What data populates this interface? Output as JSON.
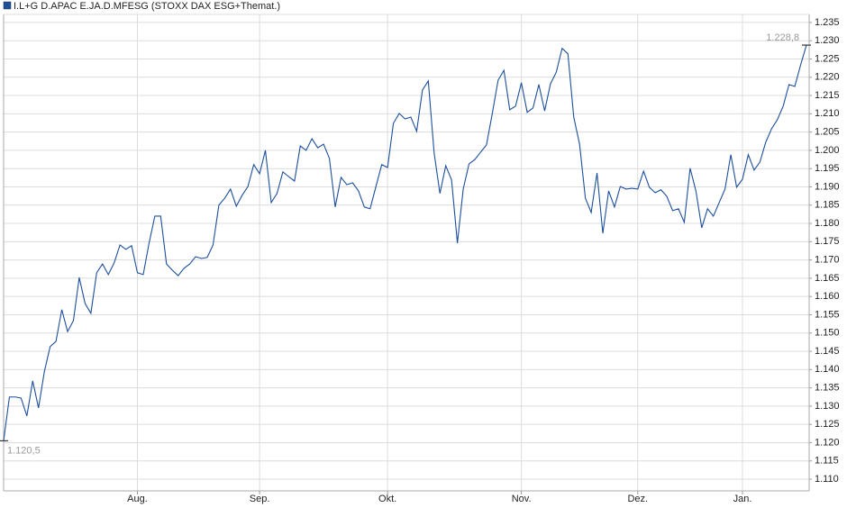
{
  "chart_data": {
    "type": "line",
    "categories": [
      null,
      null,
      null,
      null,
      null,
      null,
      null,
      null,
      null,
      null,
      null,
      null,
      null,
      null,
      null,
      null,
      null,
      null,
      null,
      null,
      null,
      null,
      null,
      "Aug.",
      null,
      null,
      null,
      null,
      null,
      null,
      null,
      null,
      null,
      null,
      null,
      null,
      null,
      null,
      null,
      null,
      null,
      null,
      null,
      null,
      "Sep.",
      null,
      null,
      null,
      null,
      null,
      null,
      null,
      null,
      null,
      null,
      null,
      null,
      null,
      null,
      null,
      null,
      null,
      null,
      null,
      null,
      null,
      "Okt.",
      null,
      null,
      null,
      null,
      null,
      null,
      null,
      null,
      null,
      null,
      null,
      null,
      null,
      null,
      null,
      null,
      null,
      null,
      null,
      null,
      null,
      null,
      "Nov.",
      null,
      null,
      null,
      null,
      null,
      null,
      null,
      null,
      null,
      null,
      null,
      null,
      null,
      null,
      null,
      null,
      null,
      null,
      null,
      "Dez.",
      null,
      null,
      null,
      null,
      null,
      null,
      null,
      null,
      null,
      null,
      null,
      null,
      null,
      null,
      null,
      null,
      null,
      "Jan.",
      null,
      null,
      null,
      null,
      null,
      null,
      null,
      null,
      null,
      null,
      null
    ],
    "series": [
      {
        "name": "I.L+G D.APAC E.JA.D.MFESG (STOXX DAX ESG+Themat.)",
        "color": "#1c4f9c",
        "values": [
          1120.5,
          1132.5,
          1132.5,
          1132.2,
          1127.3,
          1136.9,
          1129.5,
          1139.4,
          1146.3,
          1147.7,
          1156.4,
          1150.4,
          1153.4,
          1165.2,
          1158.1,
          1155.4,
          1166.5,
          1168.9,
          1166.0,
          1169.2,
          1174.1,
          1172.9,
          1173.9,
          1166.5,
          1166.0,
          1174.6,
          1182.0,
          1182.0,
          1168.9,
          1167.2,
          1165.7,
          1167.7,
          1168.9,
          1170.9,
          1170.4,
          1170.7,
          1174.1,
          1185.0,
          1186.9,
          1189.4,
          1184.7,
          1187.7,
          1190.1,
          1196.1,
          1193.6,
          1200.0,
          1185.7,
          1188.2,
          1194.1,
          1192.8,
          1191.6,
          1201.2,
          1200.0,
          1203.2,
          1200.7,
          1201.7,
          1197.8,
          1184.5,
          1192.6,
          1190.6,
          1191.1,
          1188.9,
          1184.5,
          1184.0,
          1190.1,
          1196.1,
          1195.3,
          1207.4,
          1210.1,
          1208.6,
          1209.1,
          1205.2,
          1216.5,
          1219.0,
          1199.3,
          1188.2,
          1195.8,
          1191.9,
          1174.6,
          1189.4,
          1196.3,
          1197.5,
          1199.5,
          1201.5,
          1210.1,
          1219.2,
          1221.9,
          1211.1,
          1212.1,
          1218.5,
          1210.4,
          1211.6,
          1218.0,
          1210.8,
          1218.2,
          1221.4,
          1227.9,
          1226.4,
          1209.1,
          1201.7,
          1186.9,
          1183.0,
          1193.8,
          1177.3,
          1188.9,
          1184.5,
          1190.1,
          1189.4,
          1189.6,
          1189.4,
          1194.3,
          1189.9,
          1188.4,
          1189.2,
          1187.4,
          1183.5,
          1184.0,
          1180.3,
          1195.1,
          1188.9,
          1178.8,
          1184.0,
          1182.0,
          1185.7,
          1189.4,
          1198.8,
          1189.9,
          1192.1,
          1198.8,
          1194.6,
          1196.8,
          1202.2,
          1205.9,
          1208.4,
          1212.1,
          1218.0,
          1217.5,
          1223.4,
          1228.8
        ],
        "value_labels": [
          "1.120,5",
          null,
          null,
          null,
          null,
          null,
          null,
          null,
          null,
          null,
          null,
          null,
          null,
          null,
          null,
          null,
          null,
          null,
          null,
          null,
          null,
          null,
          null,
          null,
          null,
          null,
          null,
          null,
          null,
          null,
          null,
          null,
          null,
          null,
          null,
          null,
          null,
          null,
          null,
          null,
          null,
          null,
          null,
          null,
          null,
          null,
          null,
          null,
          null,
          null,
          null,
          null,
          null,
          null,
          null,
          null,
          null,
          null,
          null,
          null,
          null,
          null,
          null,
          null,
          null,
          null,
          null,
          null,
          null,
          null,
          null,
          null,
          null,
          null,
          null,
          null,
          null,
          null,
          null,
          null,
          null,
          null,
          null,
          null,
          null,
          null,
          null,
          null,
          null,
          null,
          null,
          null,
          null,
          null,
          null,
          null,
          null,
          null,
          null,
          null,
          null,
          null,
          null,
          null,
          null,
          null,
          null,
          null,
          null,
          null,
          null,
          null,
          null,
          null,
          null,
          null,
          null,
          null,
          null,
          null,
          null,
          null,
          null,
          null,
          null,
          null,
          null,
          null,
          null,
          null,
          null,
          null,
          null,
          null,
          null,
          null,
          null,
          null,
          "1.228,8"
        ]
      }
    ],
    "ylim": [
      1106.8,
      1237.2
    ],
    "yticks": [
      {
        "value": 1110,
        "label": "1.110"
      },
      {
        "value": 1115,
        "label": "1.115"
      },
      {
        "value": 1120,
        "label": "1.120"
      },
      {
        "value": 1125,
        "label": "1.125"
      },
      {
        "value": 1130,
        "label": "1.130"
      },
      {
        "value": 1135,
        "label": "1.135"
      },
      {
        "value": 1140,
        "label": "1.140"
      },
      {
        "value": 1145,
        "label": "1.145"
      },
      {
        "value": 1150,
        "label": "1.150"
      },
      {
        "value": 1155,
        "label": "1.155"
      },
      {
        "value": 1160,
        "label": "1.160"
      },
      {
        "value": 1165,
        "label": "1.165"
      },
      {
        "value": 1170,
        "label": "1.170"
      },
      {
        "value": 1175,
        "label": "1.175"
      },
      {
        "value": 1180,
        "label": "1.180"
      },
      {
        "value": 1185,
        "label": "1.185"
      },
      {
        "value": 1190,
        "label": "1.190"
      },
      {
        "value": 1195,
        "label": "1.195"
      },
      {
        "value": 1200,
        "label": "1.200"
      },
      {
        "value": 1205,
        "label": "1.205"
      },
      {
        "value": 1210,
        "label": "1.210"
      },
      {
        "value": 1215,
        "label": "1.215"
      },
      {
        "value": 1220,
        "label": "1.220"
      },
      {
        "value": 1225,
        "label": "1.225"
      },
      {
        "value": 1230,
        "label": "1.230"
      },
      {
        "value": 1235,
        "label": "1.235"
      }
    ],
    "grid": true,
    "legend": "top-left"
  }
}
